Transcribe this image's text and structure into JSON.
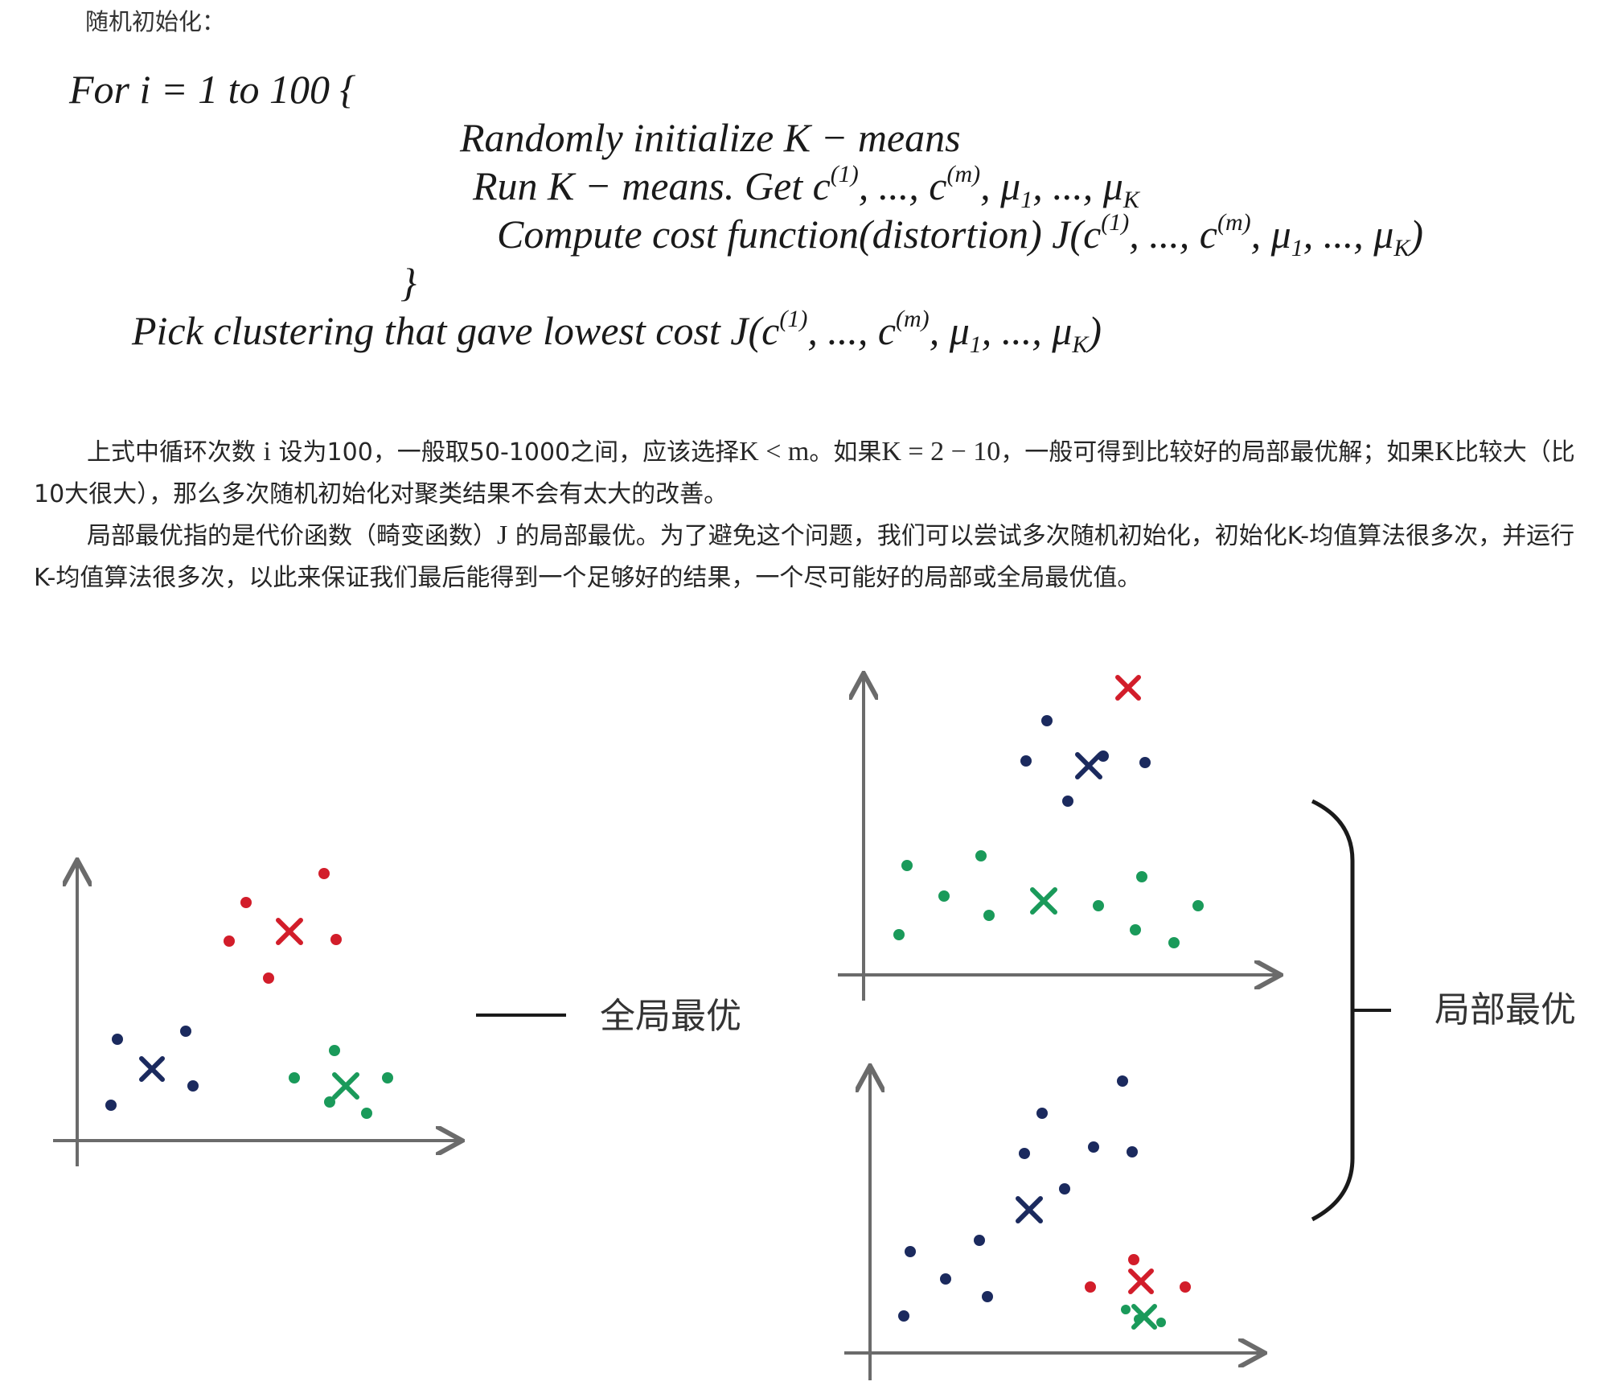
{
  "heading": "随机初始化：",
  "algorithm": {
    "line1": "For i = 1 to 100 {",
    "line2": "Randomly initialize K − means",
    "line3_prefix": "Run K − means. Get ",
    "line4_prefix": "Compute cost function(distortion) J(",
    "close_brace": "}",
    "line5_prefix": "Pick clustering that gave lowest cost J("
  },
  "paragraphs": {
    "p1_a": "上式中循环次数 ",
    "p1_i": "i",
    "p1_b": " 设为100，一般取50-1000之间，应该选择",
    "p1_m1": "K < m",
    "p1_c": "。如果",
    "p1_m2": "K = 2 − 10",
    "p1_d": "，一般可得到比较好的局部最优解；如果",
    "p1_m3": "K",
    "p1_e": "比较大（比10大很大），那么多次随机初始化对聚类结果不会有太大的改善。",
    "p2_a": "局部最优指的是代价函数（畸变函数）",
    "p2_J": "J",
    "p2_b": " 的局部最优。为了避免这个问题，我们可以尝试多次随机初始化，初始化K-均值算法很多次，并运行K-均值算法很多次，以此来保证我们最后能得到一个足够好的结果，一个尽可能好的局部或全局最优值。"
  },
  "figure": {
    "global_label": "全局最优",
    "local_label": "局部最优",
    "colors": {
      "red": "#d21d2a",
      "navy": "#1b2a5e",
      "green": "#1a9a5a",
      "axis": "#6b6b6b"
    }
  }
}
